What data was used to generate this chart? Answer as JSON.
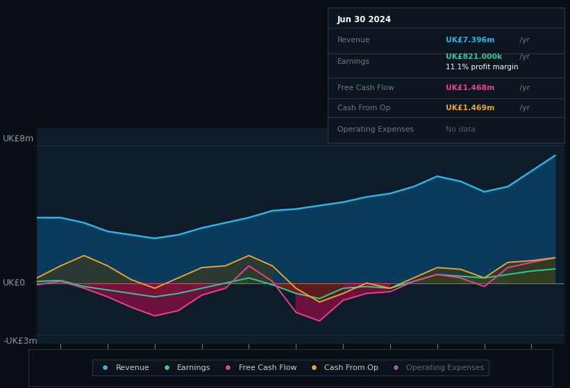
{
  "background_color": "#0a0f16",
  "plot_bg_color": "#0d1b2a",
  "ylabel": "UK£8m",
  "ylabel_neg": "-UK£3m",
  "ylabel_zero": "UK£0",
  "years": [
    2013.5,
    2014,
    2014.5,
    2015,
    2015.5,
    2016,
    2016.5,
    2017,
    2017.5,
    2018,
    2018.5,
    2019,
    2019.5,
    2020,
    2020.5,
    2021,
    2021.5,
    2022,
    2022.5,
    2023,
    2023.5,
    2024,
    2024.5
  ],
  "revenue": [
    3.8,
    3.8,
    3.5,
    3.0,
    2.8,
    2.6,
    2.8,
    3.2,
    3.5,
    3.8,
    4.2,
    4.3,
    4.5,
    4.7,
    5.0,
    5.2,
    5.6,
    6.2,
    5.9,
    5.3,
    5.6,
    6.5,
    7.4
  ],
  "earnings": [
    0.1,
    0.15,
    -0.2,
    -0.4,
    -0.6,
    -0.8,
    -0.6,
    -0.3,
    0.0,
    0.3,
    -0.1,
    -0.6,
    -0.9,
    -0.3,
    -0.2,
    -0.3,
    0.1,
    0.5,
    0.4,
    0.3,
    0.5,
    0.7,
    0.82
  ],
  "free_cash_flow": [
    -0.1,
    0.1,
    -0.3,
    -0.8,
    -1.4,
    -1.9,
    -1.6,
    -0.7,
    -0.3,
    1.0,
    0.1,
    -1.7,
    -2.2,
    -1.0,
    -0.6,
    -0.5,
    0.1,
    0.5,
    0.3,
    -0.2,
    0.9,
    1.2,
    1.47
  ],
  "cash_from_op": [
    0.3,
    1.0,
    1.6,
    1.0,
    0.2,
    -0.3,
    0.3,
    0.9,
    1.0,
    1.6,
    1.0,
    -0.3,
    -1.1,
    -0.6,
    0.0,
    -0.3,
    0.3,
    0.9,
    0.8,
    0.3,
    1.2,
    1.3,
    1.47
  ],
  "revenue_color": "#29b5e8",
  "earnings_color": "#2ecc9b",
  "free_cash_flow_color": "#e84393",
  "cash_from_op_color": "#e8a52e",
  "op_expenses_color": "#9b59b6",
  "revenue_fill": "#0a3a5c",
  "ylim": [
    -3.5,
    9.0
  ],
  "xlim": [
    2013.5,
    2024.7
  ],
  "xticks": [
    2014,
    2015,
    2016,
    2017,
    2018,
    2019,
    2020,
    2021,
    2022,
    2023,
    2024
  ],
  "grid_color": "#1e2e3e",
  "zero_line_color": "#6a7a8a",
  "info_box": {
    "date": "Jun 30 2024",
    "revenue_label": "Revenue",
    "revenue_value": "UK£7.396m",
    "revenue_unit": " /yr",
    "earnings_label": "Earnings",
    "earnings_value": "UK£821.000k",
    "earnings_unit": " /yr",
    "margin_text": "11.1% profit margin",
    "fcf_label": "Free Cash Flow",
    "fcf_value": "UK£1.468m",
    "fcf_unit": " /yr",
    "cfo_label": "Cash From Op",
    "cfo_value": "UK£1.469m",
    "cfo_unit": " /yr",
    "opex_label": "Operating Expenses",
    "opex_value": "No data"
  }
}
